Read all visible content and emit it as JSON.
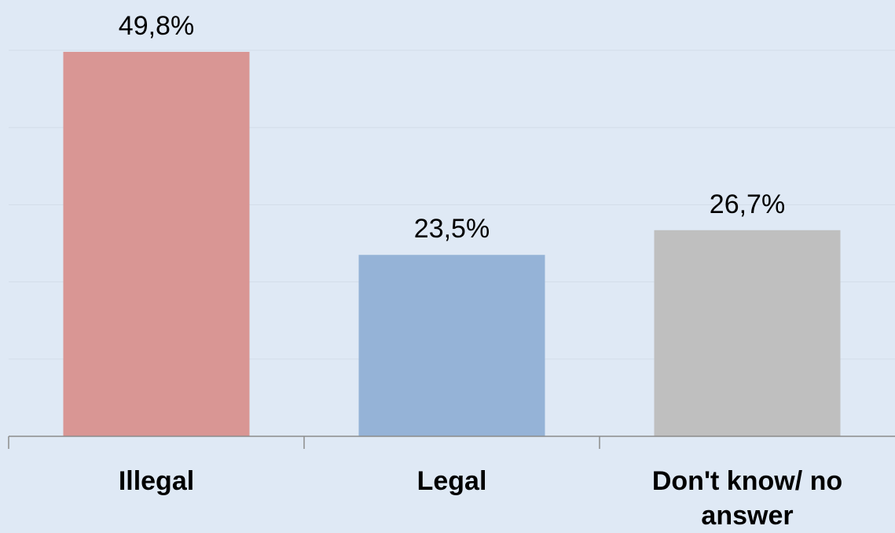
{
  "chart_data": {
    "type": "bar",
    "categories": [
      "Illegal",
      "Legal",
      "Don't know/ no answer"
    ],
    "category_lines": [
      [
        "Illegal"
      ],
      [
        "Legal"
      ],
      [
        "Don't know/ no",
        "answer"
      ]
    ],
    "values": [
      49.8,
      23.5,
      26.7
    ],
    "value_labels": [
      "49,8%",
      "23,5%",
      "26,7%"
    ],
    "colors": [
      "#d99694",
      "#95b3d7",
      "#bfbfbf"
    ],
    "ylim": [
      0,
      50
    ],
    "grid": true,
    "legend": "none",
    "title": "",
    "xlabel": "",
    "ylabel": ""
  }
}
